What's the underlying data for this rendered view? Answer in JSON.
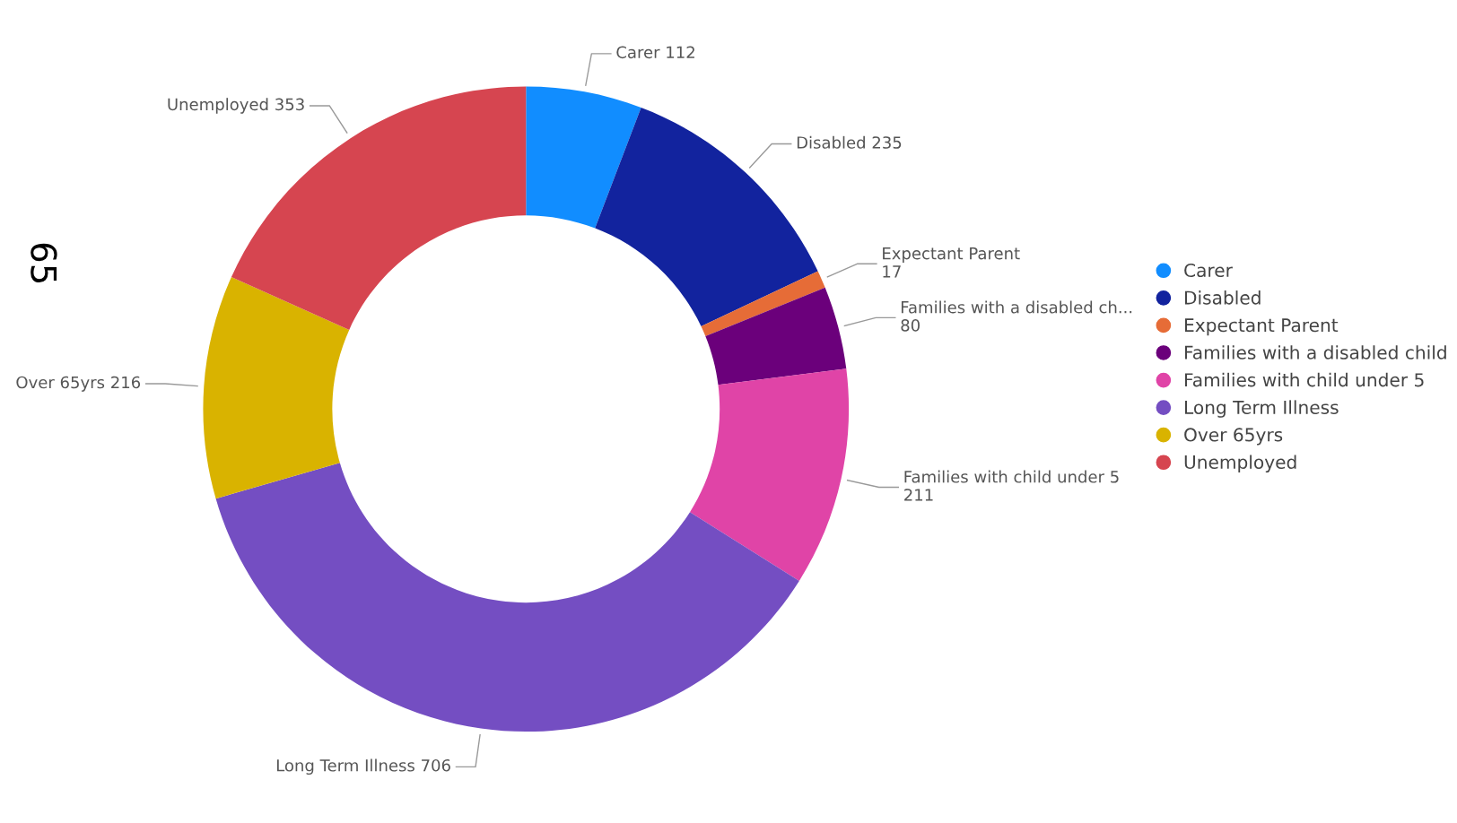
{
  "chart_data": {
    "type": "donut",
    "categories": [
      "Carer",
      "Disabled",
      "Expectant Parent",
      "Families with a disabled child",
      "Families with child under 5",
      "Long Term Illness",
      "Over 65yrs",
      "Unemployed"
    ],
    "values": [
      112,
      235,
      17,
      80,
      211,
      706,
      216,
      353
    ],
    "colors": [
      "#118dff",
      "#12239e",
      "#e66c37",
      "#6b007b",
      "#e044a7",
      "#744ec2",
      "#d9b300",
      "#d64550"
    ],
    "value_labels": [
      "Carer 112",
      "Disabled 235",
      "Expectant Parent 17",
      "Families with a disabled ch... 80",
      "Families with child under 5 211",
      "Long Term Illness 706",
      "Over 65yrs 216",
      "Unemployed 353"
    ],
    "legend": "right",
    "annotations": [
      "65"
    ]
  }
}
